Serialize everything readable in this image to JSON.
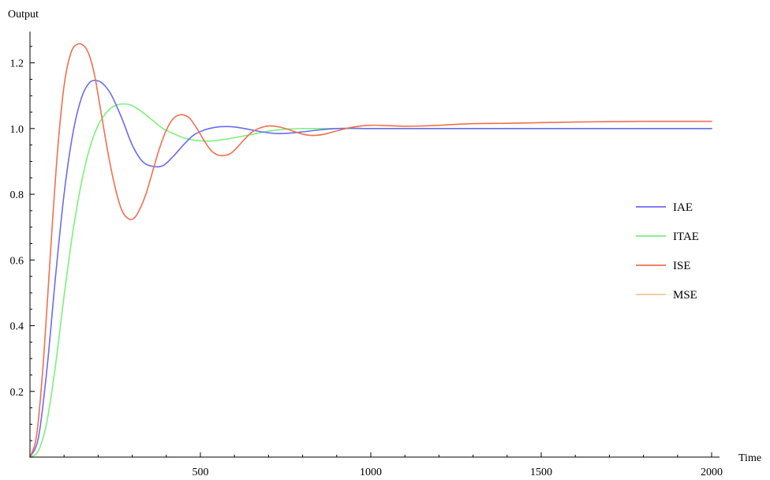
{
  "chart_data": {
    "type": "line",
    "title": "",
    "xlabel": "Time",
    "ylabel": "Output",
    "xlim": [
      0,
      2000
    ],
    "ylim": [
      0,
      1.3
    ],
    "x_ticks": [
      500,
      1000,
      1500,
      2000
    ],
    "x_tick_labels": [
      "500",
      "1000",
      "1500",
      "2000"
    ],
    "x_minor_ticks": [
      100,
      200,
      300,
      400,
      600,
      700,
      800,
      900,
      1100,
      1200,
      1300,
      1400,
      1600,
      1700,
      1800,
      1900
    ],
    "y_ticks": [
      0.2,
      0.4,
      0.6,
      0.8,
      1.0,
      1.2
    ],
    "y_tick_labels": [
      "0.2",
      "0.4",
      "0.6",
      "0.8",
      "1.0",
      "1.2"
    ],
    "y_minor_ticks": [
      0.05,
      0.1,
      0.15,
      0.25,
      0.3,
      0.35,
      0.45,
      0.5,
      0.55,
      0.65,
      0.7,
      0.75,
      0.85,
      0.9,
      0.95,
      1.05,
      1.1,
      1.15,
      1.25
    ],
    "grid": false,
    "legend_position": "right",
    "series": [
      {
        "name": "IAE",
        "color": "#6b6bf2",
        "x": [
          0,
          25,
          50,
          75,
          100,
          125,
          150,
          175,
          200,
          220,
          240,
          270,
          300,
          330,
          360,
          390,
          420,
          450,
          480,
          510,
          540,
          570,
          600,
          640,
          680,
          720,
          760,
          800,
          850,
          900,
          950,
          1000,
          1200,
          1500,
          2000
        ],
        "y": [
          0,
          0.06,
          0.27,
          0.55,
          0.8,
          0.98,
          1.09,
          1.14,
          1.145,
          1.13,
          1.1,
          1.03,
          0.95,
          0.9,
          0.885,
          0.887,
          0.915,
          0.95,
          0.98,
          0.995,
          1.003,
          1.006,
          1.005,
          0.998,
          0.99,
          0.985,
          0.986,
          0.99,
          0.996,
          1.0,
          1.001,
          1.0,
          1.0,
          1.0,
          1.0
        ]
      },
      {
        "name": "ITAE",
        "color": "#7cf07c",
        "x": [
          0,
          25,
          50,
          75,
          100,
          125,
          150,
          175,
          200,
          225,
          250,
          275,
          300,
          330,
          360,
          390,
          420,
          450,
          480,
          510,
          540,
          570,
          600,
          650,
          700,
          750,
          800,
          850,
          900,
          1000,
          1200,
          1500,
          2000
        ],
        "y": [
          0,
          0.02,
          0.11,
          0.28,
          0.49,
          0.68,
          0.83,
          0.94,
          1.01,
          1.05,
          1.07,
          1.075,
          1.07,
          1.05,
          1.025,
          1.0,
          0.985,
          0.972,
          0.965,
          0.962,
          0.963,
          0.967,
          0.972,
          0.982,
          0.992,
          0.998,
          1.0,
          1.0,
          1.0,
          1.0,
          1.0,
          1.0,
          1.0
        ]
      },
      {
        "name": "ISE",
        "color": "#f07050",
        "x": [
          0,
          20,
          40,
          60,
          80,
          100,
          120,
          140,
          160,
          175,
          190,
          210,
          230,
          250,
          270,
          290,
          305,
          320,
          340,
          360,
          380,
          400,
          420,
          440,
          455,
          470,
          490,
          510,
          530,
          550,
          570,
          590,
          610,
          630,
          650,
          670,
          700,
          730,
          750,
          770,
          800,
          830,
          860,
          900,
          950,
          1000,
          1050,
          1100,
          1150,
          1200,
          1300,
          1400,
          1500,
          1600,
          1700,
          1800,
          1900,
          2000
        ],
        "y": [
          0,
          0.07,
          0.3,
          0.62,
          0.92,
          1.13,
          1.23,
          1.257,
          1.25,
          1.22,
          1.16,
          1.04,
          0.92,
          0.82,
          0.75,
          0.725,
          0.727,
          0.75,
          0.8,
          0.87,
          0.94,
          0.995,
          1.03,
          1.042,
          1.04,
          1.03,
          1.0,
          0.965,
          0.935,
          0.92,
          0.918,
          0.925,
          0.945,
          0.968,
          0.988,
          1.0,
          1.008,
          1.005,
          1.0,
          0.993,
          0.983,
          0.979,
          0.982,
          0.993,
          1.005,
          1.01,
          1.009,
          1.007,
          1.008,
          1.01,
          1.015,
          1.016,
          1.018,
          1.02,
          1.021,
          1.022,
          1.022,
          1.022
        ]
      },
      {
        "name": "MSE",
        "color": "#f5c296",
        "x": [],
        "y": []
      }
    ]
  }
}
